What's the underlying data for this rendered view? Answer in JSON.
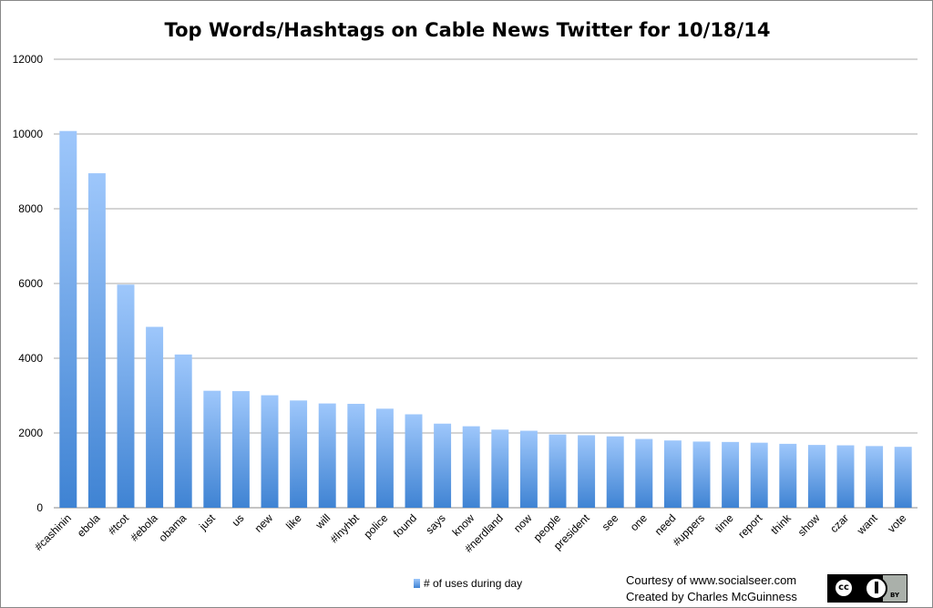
{
  "chart_data": {
    "type": "bar",
    "title": "Top Words/Hashtags on Cable News Twitter for 10/18/14",
    "categories": [
      "#cashinin",
      "ebola",
      "#tcot",
      "#ebola",
      "obama",
      "just",
      "us",
      "new",
      "like",
      "will",
      "#lnyhbt",
      "police",
      "found",
      "says",
      "know",
      "#nerdland",
      "now",
      "people",
      "president",
      "see",
      "one",
      "need",
      "#uppers",
      "time",
      "report",
      "think",
      "show",
      "czar",
      "want",
      "vote"
    ],
    "series": [
      {
        "name": "# of uses during day",
        "values": [
          10080,
          8950,
          5970,
          4840,
          4100,
          3130,
          3120,
          3010,
          2870,
          2790,
          2780,
          2650,
          2500,
          2250,
          2180,
          2090,
          2060,
          1960,
          1940,
          1910,
          1840,
          1800,
          1770,
          1760,
          1740,
          1710,
          1680,
          1670,
          1650,
          1630
        ],
        "color_top": "#9ec7fb",
        "color_bottom": "#3f83d3"
      }
    ],
    "ylim": [
      0,
      12000
    ],
    "yticks": [
      0,
      2000,
      4000,
      6000,
      8000,
      10000,
      12000
    ],
    "grid": true,
    "legend_position": "bottom"
  },
  "legend": {
    "label": "# of uses during day"
  },
  "credits": {
    "line1": "Courtesy of www.socialseer.com",
    "line2": "Created by Charles McGuinness"
  },
  "badge": {
    "cc": "cc",
    "by": "BY",
    "icon": "creative-commons-by-icon"
  }
}
